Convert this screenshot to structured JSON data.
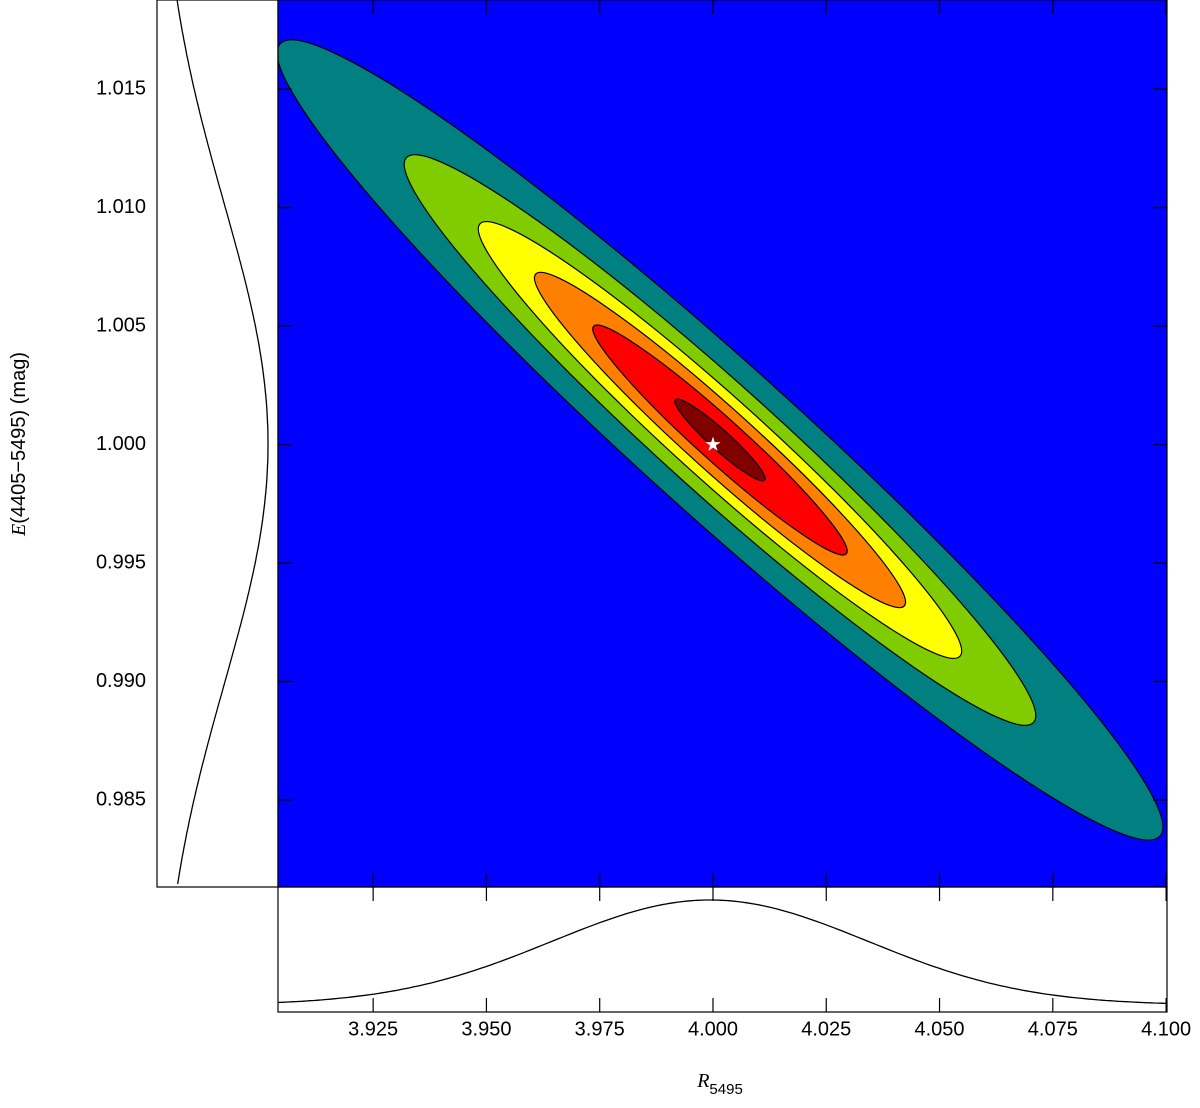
{
  "chart_data": {
    "type": "contour",
    "xlabel": {
      "symbol": "R",
      "subscript": "5495"
    },
    "ylabel": {
      "symbol": "E",
      "text": "(4405−5495) (mag)"
    },
    "xlim": [
      3.904,
      4.1002
    ],
    "ylim": [
      0.98133,
      1.01876
    ],
    "xticks": [
      3.925,
      {
        "value": 3.95,
        "label": "3.950"
      },
      3.975,
      {
        "value": 4,
        "label": "4.000"
      },
      4.025,
      {
        "value": 4.05,
        "label": "4.050"
      },
      4.075,
      {
        "value": 4.1,
        "label": "4.100"
      }
    ],
    "yticks": [
      0.985,
      {
        "value": 0.99,
        "label": "0.990"
      },
      0.995,
      {
        "value": 1,
        "label": "1.000"
      },
      1.005,
      {
        "value": 1.01,
        "label": "1.010"
      },
      1.015
    ],
    "best_fit": {
      "x": 4.0,
      "y": 1.0
    },
    "colors": [
      "#0000ff",
      "#008080",
      "#80cc00",
      "#ffff00",
      "#ff8000",
      "#ff0000",
      "#800000"
    ]
  }
}
